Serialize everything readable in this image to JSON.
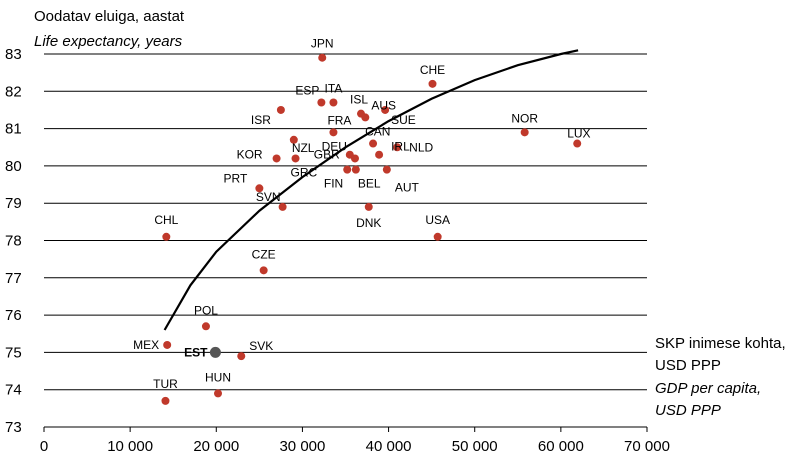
{
  "chart_data": {
    "type": "scatter",
    "title_et": "Oodatav eluiga, aastat",
    "title_en": "Life expectancy, years",
    "xlabel_et_1": "SKP inimese kohta,",
    "xlabel_et_2": "USD PPP",
    "xlabel_en_1": "GDP per capita,",
    "xlabel_en_2": "USD PPP",
    "xlim": [
      0,
      70000
    ],
    "ylim": [
      73,
      83
    ],
    "x_ticks": [
      0,
      10000,
      20000,
      30000,
      40000,
      50000,
      60000,
      70000
    ],
    "x_tick_labels": [
      "0",
      "10 000",
      "20 000",
      "30 000",
      "40 000",
      "50 000",
      "60 000",
      "70 000"
    ],
    "y_ticks": [
      73,
      74,
      75,
      76,
      77,
      78,
      79,
      80,
      81,
      82,
      83
    ],
    "y_tick_labels": [
      "73",
      "74",
      "75",
      "76",
      "77",
      "78",
      "79",
      "80",
      "81",
      "82",
      "83"
    ],
    "grid_y": true,
    "point_color": "#c0392b",
    "highlight_color": "#555555",
    "trend_color": "#000000",
    "points": [
      {
        "label": "JPN",
        "x": 32300,
        "y": 82.9
      },
      {
        "label": "CHE",
        "x": 45100,
        "y": 82.2
      },
      {
        "label": "ISR",
        "x": 27500,
        "y": 81.5
      },
      {
        "label": "ESP",
        "x": 32200,
        "y": 81.7
      },
      {
        "label": "ITA",
        "x": 33600,
        "y": 81.7
      },
      {
        "label": "ISL",
        "x": 36800,
        "y": 81.4
      },
      {
        "label": "SUE",
        "x": 39600,
        "y": 81.5
      },
      {
        "label": "AUS",
        "x": 37300,
        "y": 81.3
      },
      {
        "label": "NOR",
        "x": 55800,
        "y": 80.9
      },
      {
        "label": "LUX",
        "x": 61900,
        "y": 80.6
      },
      {
        "label": "NZL",
        "x": 29000,
        "y": 80.7
      },
      {
        "label": "FRA",
        "x": 33600,
        "y": 80.9
      },
      {
        "label": "GBR",
        "x": 35500,
        "y": 80.3
      },
      {
        "label": "CAN",
        "x": 38200,
        "y": 80.6
      },
      {
        "label": "NLD",
        "x": 41000,
        "y": 80.5
      },
      {
        "label": "KOR",
        "x": 27000,
        "y": 80.2
      },
      {
        "label": "GRC",
        "x": 29200,
        "y": 80.2
      },
      {
        "label": "DEU",
        "x": 36100,
        "y": 80.2
      },
      {
        "label": "IRL",
        "x": 38900,
        "y": 80.3
      },
      {
        "label": "FIN",
        "x": 35200,
        "y": 79.9
      },
      {
        "label": "BEL",
        "x": 36200,
        "y": 79.9
      },
      {
        "label": "AUT",
        "x": 39800,
        "y": 79.9
      },
      {
        "label": "PRT",
        "x": 25000,
        "y": 79.4
      },
      {
        "label": "SVN",
        "x": 27700,
        "y": 78.9
      },
      {
        "label": "DNK",
        "x": 37700,
        "y": 78.9
      },
      {
        "label": "CHL",
        "x": 14200,
        "y": 78.1
      },
      {
        "label": "USA",
        "x": 45700,
        "y": 78.1
      },
      {
        "label": "CZE",
        "x": 25500,
        "y": 77.2
      },
      {
        "label": "POL",
        "x": 18800,
        "y": 75.7
      },
      {
        "label": "MEX",
        "x": 14300,
        "y": 75.2
      },
      {
        "label": "EST",
        "x": 19900,
        "y": 75.0,
        "highlight": true
      },
      {
        "label": "SVK",
        "x": 22900,
        "y": 74.9
      },
      {
        "label": "TUR",
        "x": 14100,
        "y": 73.7
      },
      {
        "label": "HUN",
        "x": 20200,
        "y": 73.9
      }
    ],
    "trend_line": [
      {
        "x": 14000,
        "y": 75.6
      },
      {
        "x": 17000,
        "y": 76.8
      },
      {
        "x": 20000,
        "y": 77.7
      },
      {
        "x": 25000,
        "y": 78.8
      },
      {
        "x": 30000,
        "y": 79.7
      },
      {
        "x": 35000,
        "y": 80.5
      },
      {
        "x": 40000,
        "y": 81.2
      },
      {
        "x": 45000,
        "y": 81.8
      },
      {
        "x": 50000,
        "y": 82.3
      },
      {
        "x": 55000,
        "y": 82.7
      },
      {
        "x": 60000,
        "y": 83.0
      },
      {
        "x": 62000,
        "y": 83.1
      }
    ]
  }
}
